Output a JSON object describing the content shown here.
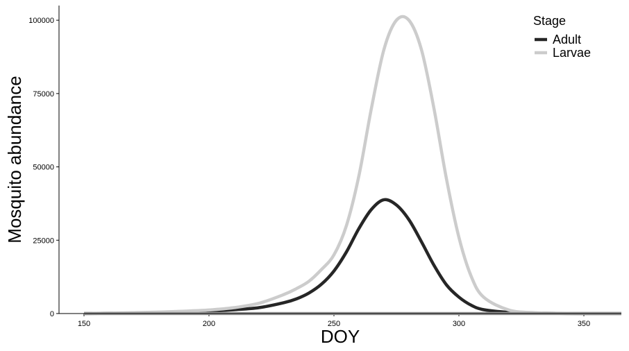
{
  "chart_data": {
    "type": "line",
    "xlabel": "DOY",
    "ylabel": "Mosquito abundance",
    "xlim": [
      140,
      365
    ],
    "ylim": [
      0,
      105000
    ],
    "x_ticks": [
      150,
      200,
      250,
      300,
      350
    ],
    "y_ticks": [
      0,
      25000,
      50000,
      75000,
      100000
    ],
    "grid": false,
    "legend": {
      "title": "Stage",
      "position": "top-right",
      "entries": [
        "Adult",
        "Larvae"
      ]
    },
    "colors": {
      "Adult": "#262626",
      "Larvae": "#cccccc",
      "tail": "#999999"
    },
    "x": [
      150,
      160,
      170,
      180,
      190,
      200,
      210,
      220,
      230,
      235,
      240,
      245,
      250,
      255,
      260,
      265,
      270,
      275,
      280,
      285,
      290,
      295,
      300,
      305,
      310,
      320,
      330,
      340,
      350,
      365
    ],
    "series": [
      {
        "name": "Adult",
        "values": [
          0,
          100,
          200,
          300,
          500,
          800,
          1300,
          2000,
          3700,
          5000,
          7000,
          10000,
          14500,
          21000,
          29000,
          35500,
          38800,
          37000,
          32000,
          24500,
          16500,
          9800,
          5600,
          2800,
          1300,
          400,
          150,
          50,
          10,
          0
        ]
      },
      {
        "name": "Larvae",
        "values": [
          0,
          150,
          300,
          500,
          800,
          1200,
          2000,
          3500,
          6500,
          8500,
          11000,
          15000,
          20000,
          30000,
          47000,
          70000,
          90000,
          100000,
          100000,
          90000,
          70000,
          46000,
          26000,
          12500,
          5500,
          1200,
          300,
          80,
          20,
          0
        ]
      }
    ]
  }
}
